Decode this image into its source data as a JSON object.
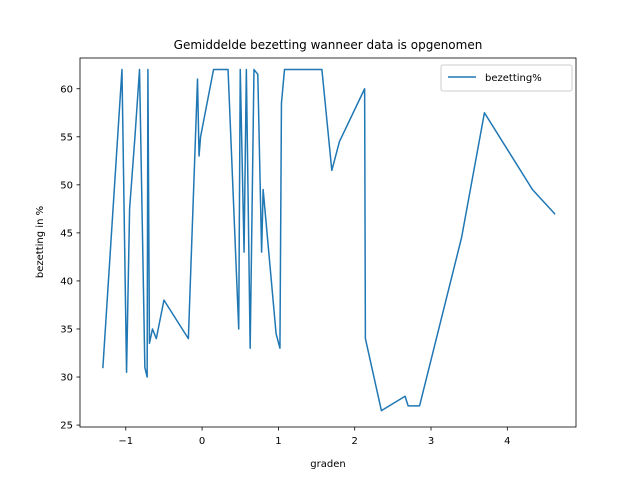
{
  "chart_data": {
    "type": "line",
    "title": "Gemiddelde bezetting wanneer data is opgenomen",
    "xlabel": "graden",
    "ylabel": "bezetting in %",
    "xlim": [
      -1.6,
      4.9
    ],
    "ylim": [
      24.8,
      63.2
    ],
    "xticks": [
      -1,
      0,
      1,
      2,
      3,
      4
    ],
    "xtick_labels": [
      "−1",
      "0",
      "1",
      "2",
      "3",
      "4"
    ],
    "yticks": [
      25,
      30,
      35,
      40,
      45,
      50,
      55,
      60
    ],
    "ytick_labels": [
      "25",
      "30",
      "35",
      "40",
      "45",
      "50",
      "55",
      "60"
    ],
    "grid": false,
    "legend_position": "top-right",
    "color": "#1f77b4",
    "series": [
      {
        "name": "bezetting%",
        "x": [
          -1.3,
          -1.05,
          -0.99,
          -0.95,
          -0.88,
          -0.82,
          -0.75,
          -0.72,
          -0.71,
          -0.69,
          -0.65,
          -0.6,
          -0.5,
          -0.18,
          -0.06,
          -0.04,
          -0.02,
          0.15,
          0.34,
          0.48,
          0.5,
          0.55,
          0.58,
          0.63,
          0.68,
          0.73,
          0.78,
          0.8,
          0.97,
          1.02,
          1.04,
          1.08,
          1.57,
          1.7,
          1.8,
          2.13,
          2.14,
          2.35,
          2.66,
          2.7,
          2.78,
          2.85,
          3.4,
          3.7,
          4.33,
          4.62
        ],
        "y": [
          31,
          62,
          30.5,
          47.5,
          55,
          62,
          31,
          30,
          62,
          33.5,
          35,
          34,
          38,
          34,
          61,
          53,
          55,
          62,
          62,
          35,
          62,
          43,
          62,
          33,
          62,
          61.5,
          43,
          49.5,
          34.5,
          33,
          58.5,
          62,
          62,
          51.5,
          54.5,
          60,
          34,
          26.5,
          28,
          27,
          27,
          27,
          44.5,
          57.5,
          49.5,
          47
        ]
      }
    ]
  }
}
